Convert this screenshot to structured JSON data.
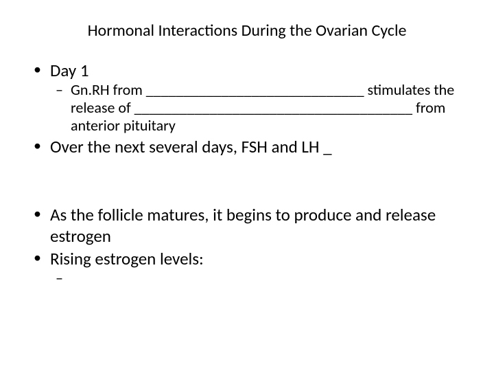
{
  "slide": {
    "title": "Hormonal Interactions During the Ovarian Cycle",
    "bullets": {
      "b1": {
        "text": "Day 1"
      },
      "b1_sub": {
        "text": "Gn.RH from _____________________________ stimulates the release of _____________________________________ from anterior pituitary"
      },
      "b2": {
        "text": "Over the next several days, FSH and LH _"
      },
      "b3": {
        "text": "As the follicle matures, it begins to produce and release estrogen"
      },
      "b4": {
        "text": "Rising estrogen levels:"
      },
      "b4_sub": {
        "text": ""
      }
    },
    "colors": {
      "background": "#ffffff",
      "text": "#000000"
    },
    "typography": {
      "title_fontsize": 24,
      "body_fontsize": 25,
      "sub_fontsize": 22,
      "font_family": "Calibri"
    }
  }
}
